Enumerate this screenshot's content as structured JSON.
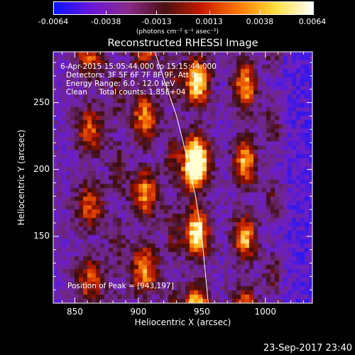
{
  "chart_data": {
    "type": "heatmap",
    "title": "Reconstructed RHESSI Image",
    "xlabel": "Heliocentric X (arcsec)",
    "ylabel": "Heliocentric Y (arcsec)",
    "xlim": [
      833,
      1037
    ],
    "ylim": [
      100,
      288
    ],
    "xticks": [
      850,
      900,
      950,
      1000
    ],
    "yticks": [
      150,
      200,
      250
    ],
    "colorbar": {
      "label": "(photons cm⁻² s⁻¹ asec⁻²)",
      "ticks": [
        "-0.0064",
        "-0.0038",
        "-0.0013",
        "0.0013",
        "0.0038",
        "0.0064"
      ],
      "range": [
        -0.0064,
        0.0064
      ],
      "colors": [
        "#0a14ff",
        "#6a16d8",
        "#8a2a8a",
        "#4a1010",
        "#c81a00",
        "#ff7a00",
        "#ffe040",
        "#ffffff"
      ]
    },
    "info_lines": [
      "6-Apr-2015 15:05:44.000 to 15:15:44.000",
      "Detectors: 3F 5F 6F 7F 8F 9F, Att 0",
      "Energy Range: 6.0 - 12.0 keV",
      "Clean     Total counts: 1.85E+04"
    ],
    "peak_label": "Position of Peak = [943,197]",
    "peak": [
      943,
      197
    ],
    "footer_date": "23-Sep-2017 23:40",
    "limb_curve": [
      [
        913,
        288
      ],
      [
        921,
        265
      ],
      [
        930,
        240
      ],
      [
        938,
        210
      ],
      [
        945,
        180
      ],
      [
        950,
        150
      ],
      [
        953,
        120
      ],
      [
        955,
        100
      ]
    ],
    "stripes": [
      {
        "x": 862,
        "width": 14,
        "amp": 0.55
      },
      {
        "x": 884,
        "width": 9,
        "amp": 0.25
      },
      {
        "x": 905,
        "width": 13,
        "amp": 0.7
      },
      {
        "x": 927,
        "width": 8,
        "amp": 0.3
      },
      {
        "x": 946,
        "width": 12,
        "amp": 0.95
      },
      {
        "x": 984,
        "width": 11,
        "amp": 0.75
      },
      {
        "x": 1006,
        "width": 9,
        "amp": 0.3
      }
    ]
  }
}
